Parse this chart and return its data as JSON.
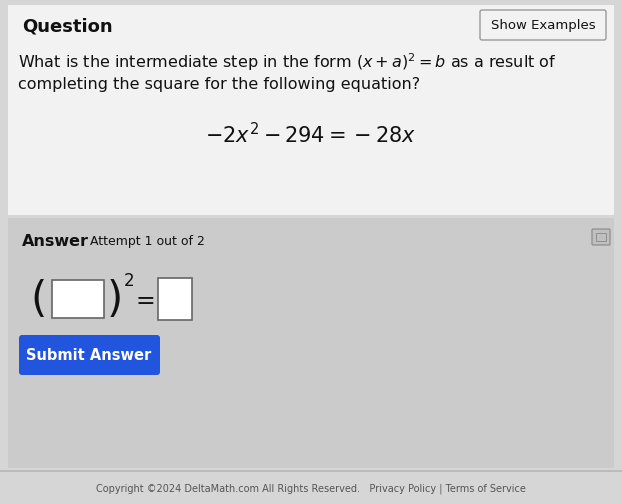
{
  "bg_color": "#d8d8d8",
  "white_section_color": "#f0f0f0",
  "answer_section_color": "#c8c8c8",
  "answer_inner_color": "#d4d4d4",
  "bottom_bar_color": "#c8c8c8",
  "question_label": "Question",
  "show_examples_text": "Show Examples",
  "question_text_line1": "What is the intermediate step in the form $(x + a)^2 = b$ as a result of",
  "question_text_line2": "completing the square for the following equation?",
  "equation": "$-2x^2 - 294 = -28x$",
  "answer_label": "Answer",
  "attempt_text": "Attempt 1 out of 2",
  "submit_button_text": "Submit Answer",
  "submit_button_color": "#2255dd",
  "submit_button_text_color": "#ffffff",
  "copyright_text": "Copyright ©2024 DeltaMath.com All Rights Reserved.   Privacy Policy | Terms of Service",
  "font_color_main": "#111111",
  "font_color_gray": "#777777",
  "show_btn_border": "#aaaaaa",
  "white": "#ffffff"
}
